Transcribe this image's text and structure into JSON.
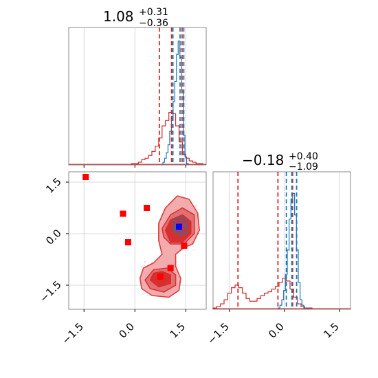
{
  "colors": {
    "red": "#d62728",
    "red_fill_light": "#f2a4a6",
    "red_fill_dark": "#d62728",
    "blue": "#1f77b4",
    "marker_red": "#ff0000",
    "marker_blue": "#0000ff",
    "grid": "#cccccc",
    "frame": "#888888",
    "scatter_pink": "#f7b6d2"
  },
  "chart_data": [
    {
      "type": "histogram",
      "panel": "parameter-1 marginal",
      "title": {
        "main": "1.08",
        "plus": "+0.31",
        "minus": "−0.36"
      },
      "x_range": [
        -1.95,
        2.1
      ],
      "y_range": [
        0,
        1
      ],
      "xticks": [
        -1.5,
        0.0,
        1.5
      ],
      "grid": true,
      "series": [
        {
          "color": "#d62728",
          "x": [
            -0.05,
            0.05,
            0.15,
            0.25,
            0.35,
            0.45,
            0.55,
            0.65,
            0.75,
            0.85,
            0.95,
            1.05,
            1.15,
            1.25,
            1.35,
            1.45,
            1.55,
            1.65,
            1.75,
            1.85,
            1.95
          ],
          "y": [
            0.01,
            0.01,
            0.02,
            0.04,
            0.05,
            0.07,
            0.1,
            0.14,
            0.2,
            0.29,
            0.33,
            0.39,
            0.38,
            0.29,
            0.17,
            0.08,
            0.05,
            0.03,
            0.02,
            0.01,
            0.01
          ]
        },
        {
          "color": "#1f77b4",
          "x": [
            0.85,
            0.9,
            0.95,
            1.0,
            1.05,
            1.1,
            1.15,
            1.2,
            1.25,
            1.3,
            1.35,
            1.4,
            1.45,
            1.5,
            1.55
          ],
          "y": [
            0.02,
            0.05,
            0.09,
            0.15,
            0.25,
            0.36,
            0.47,
            0.62,
            0.82,
            0.92,
            0.8,
            0.55,
            0.22,
            0.06,
            0.01
          ]
        }
      ],
      "quantiles": [
        {
          "color": "#d62728",
          "x": [
            0.72,
            1.08,
            1.39
          ]
        },
        {
          "color": "#1f77b4",
          "x": [
            1.12,
            1.33,
            1.44
          ]
        }
      ]
    },
    {
      "type": "histogram",
      "panel": "parameter-2 marginal",
      "title": {
        "main": "−0.18",
        "plus": "+0.40",
        "minus": "−1.09"
      },
      "x_range": [
        -1.95,
        1.8
      ],
      "y_range": [
        0,
        1
      ],
      "xticks": [
        -1.5,
        0.0,
        1.5
      ],
      "grid": true,
      "series": [
        {
          "color": "#d62728",
          "x": [
            -1.9,
            -1.8,
            -1.7,
            -1.6,
            -1.5,
            -1.4,
            -1.3,
            -1.2,
            -1.1,
            -1.0,
            -0.9,
            -0.8,
            -0.7,
            -0.6,
            -0.5,
            -0.4,
            -0.3,
            -0.2,
            -0.1,
            0.0,
            0.1,
            0.2,
            0.3,
            0.4,
            0.5,
            0.6,
            0.7
          ],
          "y": [
            0.01,
            0.02,
            0.04,
            0.07,
            0.12,
            0.16,
            0.18,
            0.16,
            0.12,
            0.08,
            0.06,
            0.06,
            0.08,
            0.1,
            0.12,
            0.13,
            0.15,
            0.17,
            0.2,
            0.23,
            0.21,
            0.15,
            0.09,
            0.04,
            0.02,
            0.01,
            0.01
          ]
        },
        {
          "color": "#1f77b4",
          "x": [
            -0.15,
            -0.1,
            -0.05,
            0.0,
            0.05,
            0.1,
            0.15,
            0.2,
            0.25,
            0.3,
            0.35,
            0.4,
            0.45,
            0.5,
            0.55,
            0.6
          ],
          "y": [
            0.01,
            0.03,
            0.07,
            0.14,
            0.26,
            0.44,
            0.67,
            0.82,
            0.86,
            0.7,
            0.44,
            0.2,
            0.07,
            0.03,
            0.01,
            0.01
          ]
        }
      ],
      "quantiles": [
        {
          "color": "#d62728",
          "x": [
            -1.27,
            -0.18,
            0.22
          ]
        },
        {
          "color": "#1f77b4",
          "x": [
            0.05,
            0.2,
            0.33
          ]
        }
      ]
    },
    {
      "type": "scatter",
      "panel": "joint distribution",
      "x_range": [
        -1.95,
        2.1
      ],
      "y_range": [
        -2.2,
        1.8
      ],
      "xticks": [
        -1.5,
        0.0,
        1.5
      ],
      "yticks": [
        -1.5,
        0.0,
        1.5
      ],
      "grid": true,
      "contours": [
        {
          "level": "outer",
          "color": "#d62728",
          "fill": "#f2a4a6",
          "points": [
            [
              0.15,
              -1.3
            ],
            [
              0.2,
              -1.6
            ],
            [
              0.5,
              -1.8
            ],
            [
              1.0,
              -1.85
            ],
            [
              1.3,
              -1.65
            ],
            [
              1.35,
              -1.3
            ],
            [
              1.2,
              -0.95
            ],
            [
              1.2,
              -0.6
            ],
            [
              1.45,
              -0.4
            ],
            [
              1.7,
              -0.3
            ],
            [
              1.9,
              0.1
            ],
            [
              1.85,
              0.6
            ],
            [
              1.6,
              1.0
            ],
            [
              1.25,
              1.1
            ],
            [
              0.9,
              0.75
            ],
            [
              0.7,
              0.3
            ],
            [
              0.7,
              -0.2
            ],
            [
              0.8,
              -0.6
            ],
            [
              0.55,
              -0.85
            ],
            [
              0.25,
              -1.0
            ]
          ]
        },
        {
          "level": "middle",
          "color": "#d62728",
          "fill": "#e06a6c",
          "points": [
            [
              0.3,
              -1.35
            ],
            [
              0.45,
              -1.6
            ],
            [
              0.85,
              -1.7
            ],
            [
              1.2,
              -1.5
            ],
            [
              1.2,
              -1.2
            ],
            [
              0.95,
              -1.0
            ],
            [
              0.55,
              -1.05
            ]
          ]
        },
        {
          "level": "middle",
          "color": "#d62728",
          "fill": "#e06a6c",
          "points": [
            [
              0.8,
              0.15
            ],
            [
              1.05,
              0.55
            ],
            [
              1.4,
              0.75
            ],
            [
              1.75,
              0.55
            ],
            [
              1.75,
              0.0
            ],
            [
              1.45,
              -0.3
            ],
            [
              1.05,
              -0.3
            ],
            [
              0.85,
              -0.1
            ]
          ]
        },
        {
          "level": "inner",
          "color": "#d62728",
          "fill": "#d62728",
          "points": [
            [
              0.45,
              -1.35
            ],
            [
              0.7,
              -1.55
            ],
            [
              1.05,
              -1.45
            ],
            [
              1.05,
              -1.2
            ],
            [
              0.8,
              -1.1
            ],
            [
              0.55,
              -1.15
            ]
          ]
        },
        {
          "level": "inner",
          "color": "#d62728",
          "fill": "#d62728",
          "points": [
            [
              0.9,
              0.1
            ],
            [
              1.05,
              0.4
            ],
            [
              1.4,
              0.55
            ],
            [
              1.65,
              0.35
            ],
            [
              1.65,
              0.0
            ],
            [
              1.4,
              -0.25
            ],
            [
              1.05,
              -0.25
            ]
          ]
        },
        {
          "level": "blue",
          "color": "#1f77b4",
          "fill": "none",
          "points": [
            [
              1.1,
              0.35
            ],
            [
              1.35,
              0.5
            ],
            [
              1.55,
              0.35
            ],
            [
              1.55,
              0.05
            ],
            [
              1.35,
              -0.05
            ],
            [
              1.15,
              0.05
            ]
          ]
        },
        {
          "level": "blue",
          "color": "#1f77b4",
          "fill": "none",
          "points": [
            [
              1.2,
              0.3
            ],
            [
              1.4,
              0.38
            ],
            [
              1.5,
              0.2
            ],
            [
              1.35,
              0.05
            ],
            [
              1.2,
              0.12
            ]
          ]
        }
      ],
      "markers": [
        {
          "color": "#ff0000",
          "x": -1.45,
          "y": 1.65
        },
        {
          "color": "#ff0000",
          "x": -0.35,
          "y": 0.58
        },
        {
          "color": "#ff0000",
          "x": 0.35,
          "y": 0.75
        },
        {
          "color": "#ff0000",
          "x": -0.2,
          "y": -0.25
        },
        {
          "color": "#ff0000",
          "x": 1.45,
          "y": -0.35
        },
        {
          "color": "#ff0000",
          "x": 1.05,
          "y": -1.0
        },
        {
          "color": "#ff0000",
          "x": 0.75,
          "y": -1.25
        },
        {
          "color": "#0000ff",
          "x": 1.3,
          "y": 0.2
        }
      ]
    }
  ]
}
